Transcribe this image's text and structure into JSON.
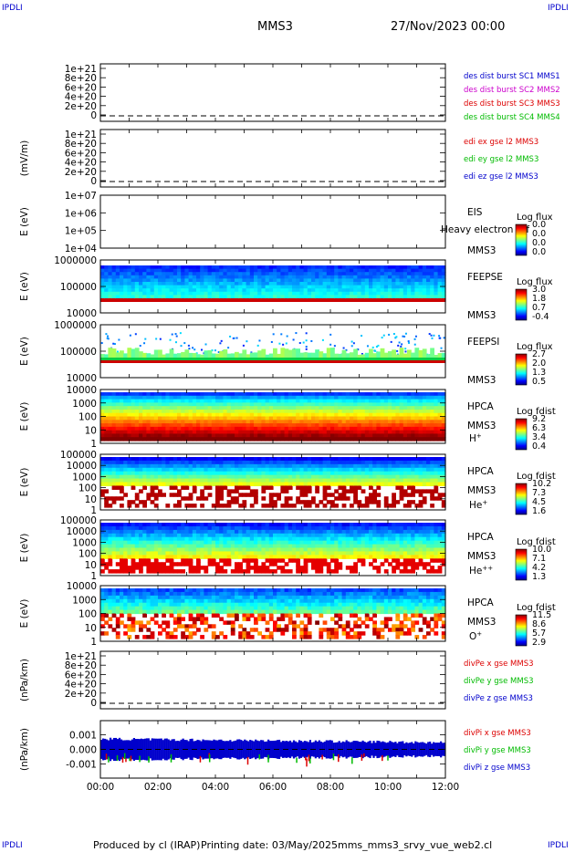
{
  "corner_tl": "IPDLI",
  "corner_tr": "IPDLI",
  "corner_bl": "IPDLI",
  "corner_br": "IPDLI",
  "header": {
    "spacecraft": "MMS3",
    "date": "27/Nov/2023 00:00"
  },
  "footer": {
    "producer": "Produced by cl (IRAP)",
    "printing": "Printing date: 03/May/2025",
    "script": "mms_mms3_srvy_vue_web2.cl"
  },
  "colors": {
    "blue": "#0000cc",
    "magenta": "#cc00cc",
    "red": "#dd0000",
    "green": "#00bb00"
  },
  "chart_data": [
    {
      "type": "line",
      "id": "des_dist",
      "ylabel": "",
      "yticks": [
        "1e+21",
        "8e+20",
        "6e+20",
        "4e+20",
        "2e+20",
        "0"
      ],
      "dashed_zero": true,
      "legend": [
        {
          "text": "des dist burst SC1 MMS1",
          "color": "#0000cc"
        },
        {
          "text": "des dist burst SC2 MMS2",
          "color": "#cc00cc"
        },
        {
          "text": "des dist burst SC3 MMS3",
          "color": "#dd0000"
        },
        {
          "text": "des dist burst SC4 MMS4",
          "color": "#00bb00"
        }
      ]
    },
    {
      "type": "line",
      "id": "edi",
      "ylabel": "(mV/m)",
      "yticks": [
        "1e+21",
        "8e+20",
        "6e+20",
        "4e+20",
        "2e+20",
        "0"
      ],
      "dashed_zero": true,
      "legend": [
        {
          "text": "edi ex gse l2 MMS3",
          "color": "#dd0000"
        },
        {
          "text": "edi ey gse l2 MMS3",
          "color": "#00bb00"
        },
        {
          "text": "edi ez gse l2 MMS3",
          "color": "#0000cc"
        }
      ]
    },
    {
      "type": "heatmap",
      "id": "eis",
      "ylabel": "E (eV)",
      "yticks": [
        "1e+07",
        "1e+06",
        "1e+05",
        "1e+04"
      ],
      "label_lines": [
        "EIS",
        "",
        "MMS3"
      ],
      "overlay_text": "Heavy electron tof",
      "cbar_title": "Log flux",
      "cbar_ticks": [
        "0.0",
        "0.0",
        "0.0",
        "0.0"
      ],
      "empty": true
    },
    {
      "type": "heatmap",
      "id": "feepse",
      "ylabel": "E (eV)",
      "yticks": [
        "1000000",
        "100000",
        "10000"
      ],
      "label_lines": [
        "FEEPSE",
        "",
        "MMS3"
      ],
      "cbar_title": "Log flux",
      "cbar_ticks": [
        "3.0",
        "1.8",
        "0.7",
        "-0.4"
      ]
    },
    {
      "type": "heatmap",
      "id": "feepsi",
      "ylabel": "E (eV)",
      "yticks": [
        "1000000",
        "100000",
        "10000"
      ],
      "label_lines": [
        "FEEPSI",
        "",
        "MMS3"
      ],
      "cbar_title": "Log flux",
      "cbar_ticks": [
        "2.7",
        "2.0",
        "1.3",
        "0.5"
      ]
    },
    {
      "type": "heatmap",
      "id": "hpca_h",
      "ylabel": "E (eV)",
      "yticks": [
        "10000",
        "1000",
        "100",
        "10",
        "1"
      ],
      "label_lines": [
        "HPCA",
        "MMS3"
      ],
      "species": "H",
      "species_sup": "+",
      "cbar_title": "Log fdist",
      "cbar_ticks": [
        "9.2",
        "6.3",
        "3.4",
        "0.4"
      ]
    },
    {
      "type": "heatmap",
      "id": "hpca_he1",
      "ylabel": "E (eV)",
      "yticks": [
        "100000",
        "10000",
        "1000",
        "100",
        "10",
        "1"
      ],
      "label_lines": [
        "HPCA",
        "MMS3"
      ],
      "species": "He",
      "species_sup": "+",
      "cbar_title": "Log fdist",
      "cbar_ticks": [
        "10.2",
        "7.3",
        "4.5",
        "1.6"
      ]
    },
    {
      "type": "heatmap",
      "id": "hpca_he2",
      "ylabel": "E (eV)",
      "yticks": [
        "100000",
        "10000",
        "1000",
        "100",
        "10",
        "1"
      ],
      "label_lines": [
        "HPCA",
        "MMS3"
      ],
      "species": "He",
      "species_sup": "++",
      "cbar_title": "Log fdist",
      "cbar_ticks": [
        "10.0",
        "7.1",
        "4.2",
        "1.3"
      ]
    },
    {
      "type": "heatmap",
      "id": "hpca_o",
      "ylabel": "E (eV)",
      "yticks": [
        "10000",
        "1000",
        "100",
        "10",
        "1"
      ],
      "label_lines": [
        "HPCA",
        "MMS3"
      ],
      "species": "O",
      "species_sup": "+",
      "cbar_title": "Log fdist",
      "cbar_ticks": [
        "11.5",
        "8.6",
        "5.7",
        "2.9"
      ]
    },
    {
      "type": "line",
      "id": "divpe",
      "ylabel": "(nPa/km)",
      "yticks": [
        "1e+21",
        "8e+20",
        "6e+20",
        "4e+20",
        "2e+20",
        "0"
      ],
      "dashed_zero": true,
      "legend": [
        {
          "text": "divPe x gse MMS3",
          "color": "#dd0000"
        },
        {
          "text": "divPe y gse MMS3",
          "color": "#00bb00"
        },
        {
          "text": "divPe z gse MMS3",
          "color": "#0000cc"
        }
      ]
    },
    {
      "type": "line",
      "id": "divpi",
      "ylabel": "(nPa/km)",
      "yticks": [
        "0.001",
        "0.000",
        "-0.001"
      ],
      "dashed_zero": true,
      "ylim": [
        -0.0015,
        0.0015
      ],
      "legend": [
        {
          "text": "divPi x gse MMS3",
          "color": "#dd0000"
        },
        {
          "text": "divPi y gse MMS3",
          "color": "#00bb00"
        },
        {
          "text": "divPi z gse MMS3",
          "color": "#0000cc"
        }
      ]
    }
  ],
  "time_axis": [
    "00:00",
    "02:00",
    "04:00",
    "06:00",
    "08:00",
    "10:00",
    "12:00"
  ]
}
